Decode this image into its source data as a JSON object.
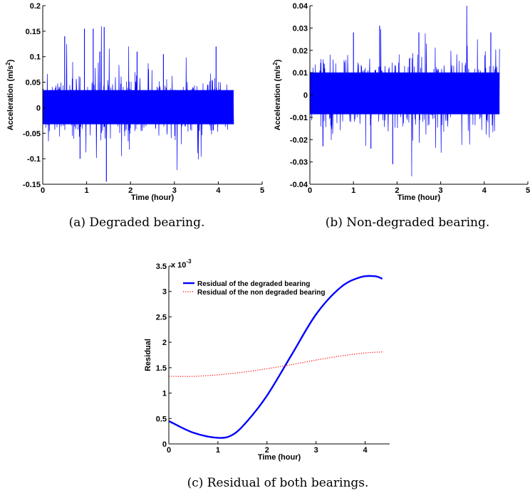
{
  "chart_data": [
    {
      "id": "a",
      "type": "line",
      "caption": "(a) Degraded bearing.",
      "xlabel": "Time (hour)",
      "ylabel": "Acceleration (m/s",
      "ylabel_sup": "2",
      "ylabel_close": ")",
      "xlim": [
        0,
        5
      ],
      "ylim": [
        -0.15,
        0.2
      ],
      "xticks": [
        "0",
        "1",
        "2",
        "3",
        "4",
        "5"
      ],
      "yticks": [
        "-0.15",
        "-0.1",
        "-0.05",
        "0",
        "0.05",
        "0.1",
        "0.15",
        "0.2"
      ],
      "series": [
        {
          "color": "#0000ff",
          "x_range": [
            0,
            4.35
          ],
          "core_band": [
            -0.045,
            0.048
          ],
          "peaks": [
            [
              0.5,
              0.14
            ],
            [
              0.95,
              0.155
            ],
            [
              1.15,
              0.155
            ],
            [
              1.4,
              0.158
            ],
            [
              1.45,
              -0.145
            ],
            [
              2.15,
              0.11
            ],
            [
              3.95,
              0.12
            ],
            [
              1.3,
              0.11
            ],
            [
              0.85,
              -0.1
            ],
            [
              2.75,
              0.105
            ]
          ]
        }
      ]
    },
    {
      "id": "b",
      "type": "line",
      "caption": "(b) Non-degraded bearing.",
      "xlabel": "Time (hour)",
      "ylabel": "Acceleration (m/s",
      "ylabel_sup": "2",
      "ylabel_close": ")",
      "xlim": [
        0,
        5
      ],
      "ylim": [
        -0.04,
        0.04
      ],
      "xticks": [
        "0",
        "1",
        "2",
        "3",
        "4",
        "5"
      ],
      "yticks": [
        "-0.04",
        "-0.03",
        "-0.02",
        "-0.01",
        "0",
        "0.01",
        "0.02",
        "0.03",
        "0.04"
      ],
      "series": [
        {
          "color": "#0000ff",
          "x_range": [
            0,
            4.35
          ],
          "core_band": [
            -0.012,
            0.014
          ],
          "peaks": [
            [
              1.0,
              0.028
            ],
            [
              1.6,
              0.031
            ],
            [
              1.9,
              -0.031
            ],
            [
              2.5,
              0.028
            ],
            [
              4.15,
              0.028
            ],
            [
              0.3,
              -0.023
            ],
            [
              1.4,
              -0.024
            ]
          ]
        }
      ]
    },
    {
      "id": "c",
      "type": "line",
      "caption": "(c) Residual of both bearings.",
      "xlabel": "Time (hour)",
      "ylabel": "Residual",
      "yscale_label": "x 10",
      "yscale_exp": "-3",
      "xlim": [
        0,
        4.5
      ],
      "ylim": [
        0,
        3.5
      ],
      "xticks": [
        "0",
        "1",
        "2",
        "3",
        "4"
      ],
      "yticks": [
        "0",
        "0.5",
        "1",
        "1.5",
        "2",
        "2.5",
        "3",
        "3.5"
      ],
      "legend_position": "top-left",
      "series": [
        {
          "name": "Residual of the degraded bearing",
          "color": "#0000ff",
          "style": "solid",
          "x": [
            0,
            0.5,
            1.0,
            1.3,
            1.6,
            2.0,
            2.5,
            3.0,
            3.5,
            3.9,
            4.2,
            4.35
          ],
          "y": [
            0.45,
            0.22,
            0.12,
            0.18,
            0.45,
            0.95,
            1.75,
            2.55,
            3.08,
            3.28,
            3.3,
            3.25
          ]
        },
        {
          "name": "Residual of the non degraded bearing",
          "color": "#ff0000",
          "style": "dotted",
          "x": [
            0,
            0.5,
            1.0,
            1.5,
            2.0,
            2.5,
            3.0,
            3.5,
            4.0,
            4.35
          ],
          "y": [
            1.33,
            1.33,
            1.36,
            1.41,
            1.48,
            1.56,
            1.65,
            1.73,
            1.79,
            1.81
          ]
        }
      ]
    }
  ]
}
